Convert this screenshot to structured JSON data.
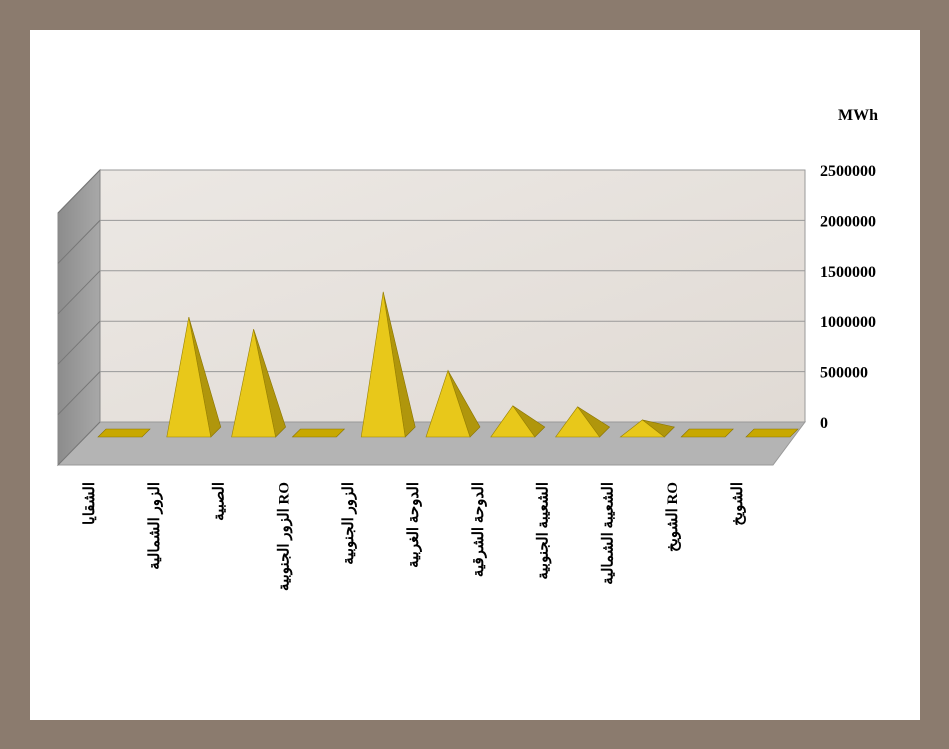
{
  "chart_data": {
    "type": "pyramid3d",
    "y_label": "MWh",
    "categories": [
      "الشقايا",
      "الزور الشمالية",
      "الصبية",
      "الزور الجنوبية RO",
      "الزور الجنوبية",
      "الدوحة الغربية",
      "الدوحة الشرقية",
      "الشعيبة الجنوبية",
      "الشعيبة الشمالية",
      "الشويخ RO",
      "الشويخ"
    ],
    "values": [
      0,
      1150000,
      1030000,
      0,
      1400000,
      620000,
      270000,
      260000,
      130000,
      0,
      0
    ],
    "color": "#e8c81a",
    "ylim": [
      0,
      2500000
    ],
    "yticks": [
      0,
      500000,
      1000000,
      1500000,
      2000000,
      2500000
    ],
    "grid": true
  }
}
